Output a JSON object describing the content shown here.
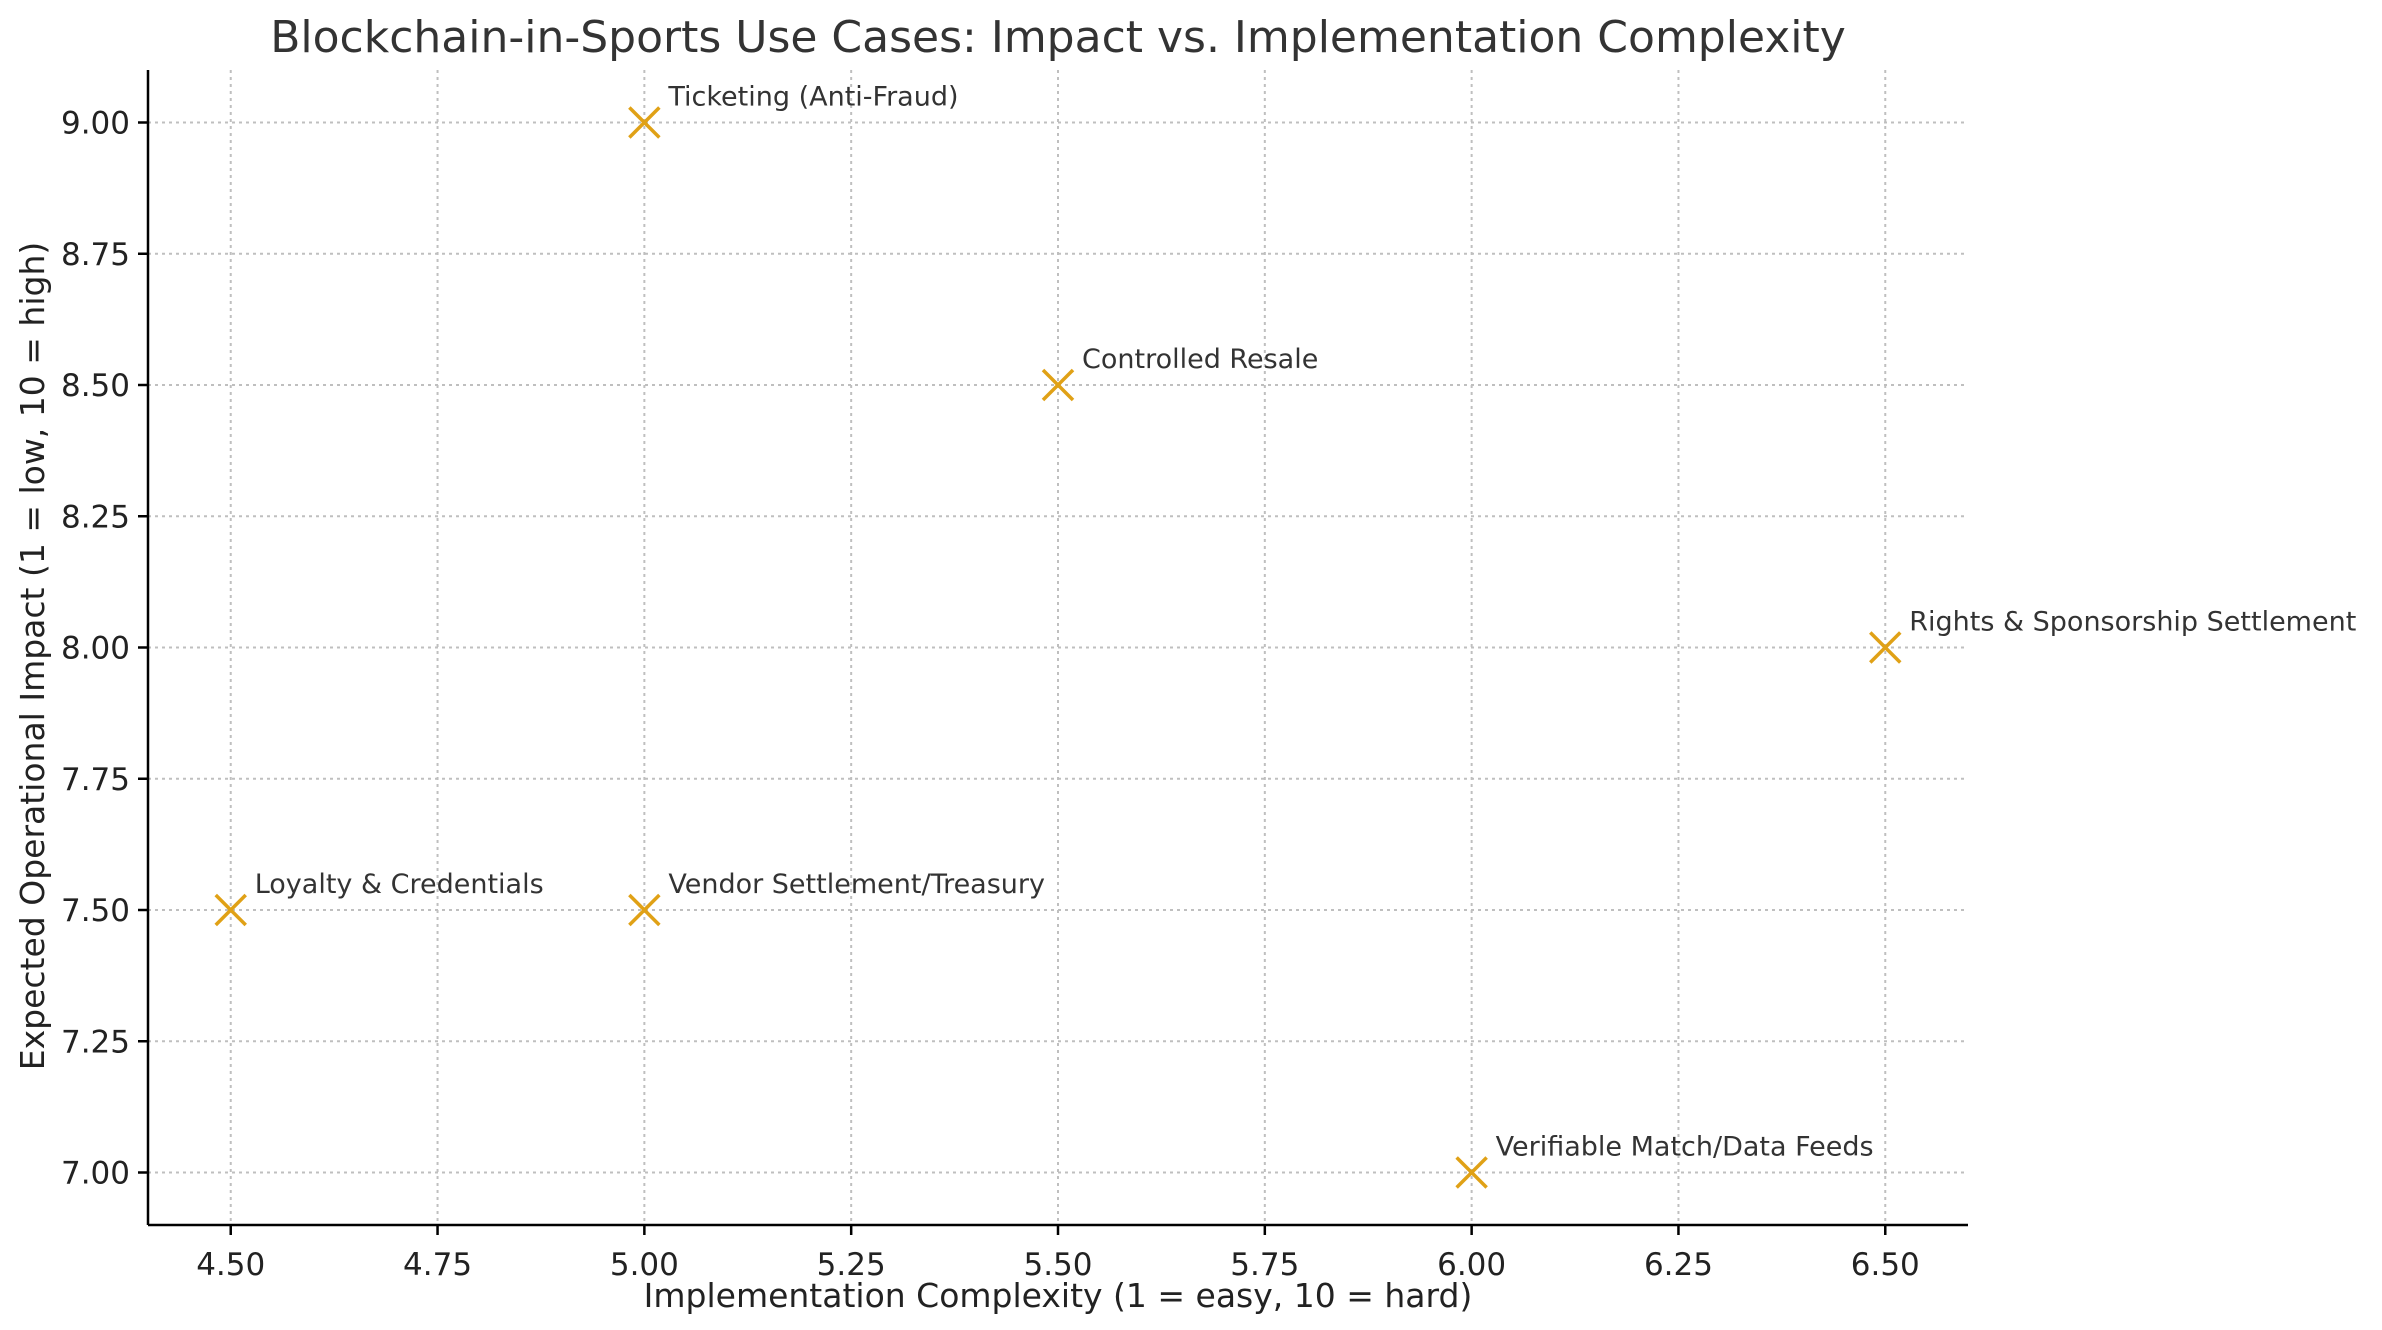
{
  "chart_data": {
    "type": "scatter",
    "title": "Blockchain-in-Sports Use Cases: Impact vs. Implementation Complexity",
    "xlabel": "Implementation Complexity (1 = easy, 10 = hard)",
    "ylabel": "Expected Operational Impact (1 = low, 10 = high)",
    "xlim": [
      4.4,
      6.6
    ],
    "ylim": [
      6.9,
      9.1
    ],
    "xticks": [
      "4.50",
      "4.75",
      "5.00",
      "5.25",
      "5.50",
      "5.75",
      "6.00",
      "6.25",
      "6.50"
    ],
    "yticks": [
      "7.00",
      "7.25",
      "7.50",
      "7.75",
      "8.00",
      "8.25",
      "8.50",
      "8.75",
      "9.00"
    ],
    "grid": true,
    "marker": "x",
    "marker_color": "#E0A116",
    "points": [
      {
        "label": "Ticketing (Anti-Fraud)",
        "x": 5.0,
        "y": 9.0
      },
      {
        "label": "Controlled Resale",
        "x": 5.5,
        "y": 8.5
      },
      {
        "label": "Rights & Sponsorship Settlement",
        "x": 6.5,
        "y": 8.0
      },
      {
        "label": "Loyalty & Credentials",
        "x": 4.5,
        "y": 7.5
      },
      {
        "label": "Vendor Settlement/Treasury",
        "x": 5.0,
        "y": 7.5
      },
      {
        "label": "Verifiable Match/Data Feeds",
        "x": 6.0,
        "y": 7.0
      }
    ]
  }
}
